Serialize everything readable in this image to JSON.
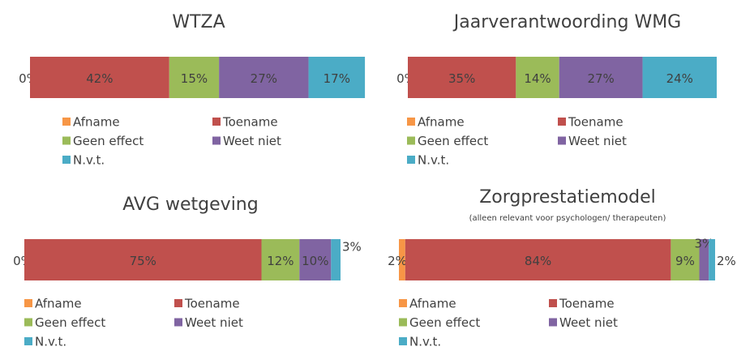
{
  "chart_data": [
    {
      "type": "stacked-bar",
      "title": "WTZA",
      "categories": [
        null
      ],
      "series": [
        {
          "name": "Afname",
          "color": "#f79646",
          "values": [
            0
          ],
          "value_labels": [
            "0%"
          ]
        },
        {
          "name": "Toename",
          "color": "#c0504d",
          "values": [
            42
          ],
          "value_labels": [
            "42%"
          ]
        },
        {
          "name": "Geen effect",
          "color": "#9bbb59",
          "values": [
            15
          ],
          "value_labels": [
            "15%"
          ]
        },
        {
          "name": "Weet niet",
          "color": "#8064a2",
          "values": [
            27
          ],
          "value_labels": [
            "27%"
          ]
        },
        {
          "name": "N.v.t.",
          "color": "#4bacc6",
          "values": [
            17
          ],
          "value_labels": [
            "17%"
          ]
        }
      ]
    },
    {
      "type": "stacked-bar",
      "title": "Jaarverantwoording WMG",
      "categories": [
        null
      ],
      "series": [
        {
          "name": "Afname",
          "color": "#f79646",
          "values": [
            0
          ],
          "value_labels": [
            "0%"
          ]
        },
        {
          "name": "Toename",
          "color": "#c0504d",
          "values": [
            35
          ],
          "value_labels": [
            "35%"
          ]
        },
        {
          "name": "Geen effect",
          "color": "#9bbb59",
          "values": [
            14
          ],
          "value_labels": [
            "14%"
          ]
        },
        {
          "name": "Weet niet",
          "color": "#8064a2",
          "values": [
            27
          ],
          "value_labels": [
            "27%"
          ]
        },
        {
          "name": "N.v.t.",
          "color": "#4bacc6",
          "values": [
            24
          ],
          "value_labels": [
            "24%"
          ]
        }
      ]
    },
    {
      "type": "stacked-bar",
      "title": "AVG wetgeving",
      "categories": [
        null
      ],
      "series": [
        {
          "name": "Afname",
          "color": "#f79646",
          "values": [
            0
          ],
          "value_labels": [
            "0%"
          ]
        },
        {
          "name": "Toename",
          "color": "#c0504d",
          "values": [
            75
          ],
          "value_labels": [
            "75%"
          ]
        },
        {
          "name": "Geen effect",
          "color": "#9bbb59",
          "values": [
            12
          ],
          "value_labels": [
            "12%"
          ]
        },
        {
          "name": "Weet niet",
          "color": "#8064a2",
          "values": [
            10
          ],
          "value_labels": [
            "10%"
          ]
        },
        {
          "name": "N.v.t.",
          "color": "#4bacc6",
          "values": [
            3
          ],
          "value_labels": [
            "3%"
          ]
        }
      ]
    },
    {
      "type": "stacked-bar",
      "title": "Zorgprestatiemodel",
      "subtitle": "(alleen relevant voor psychologen/ therapeuten)",
      "categories": [
        null
      ],
      "series": [
        {
          "name": "Afname",
          "color": "#f79646",
          "values": [
            2
          ],
          "value_labels": [
            "2%"
          ]
        },
        {
          "name": "Toename",
          "color": "#c0504d",
          "values": [
            84
          ],
          "value_labels": [
            "84%"
          ]
        },
        {
          "name": "Geen effect",
          "color": "#9bbb59",
          "values": [
            9
          ],
          "value_labels": [
            "9%"
          ]
        },
        {
          "name": "Weet niet",
          "color": "#8064a2",
          "values": [
            3
          ],
          "value_labels": [
            "3%"
          ]
        },
        {
          "name": "N.v.t.",
          "color": "#4bacc6",
          "values": [
            2
          ],
          "value_labels": [
            "2%"
          ]
        }
      ]
    }
  ]
}
